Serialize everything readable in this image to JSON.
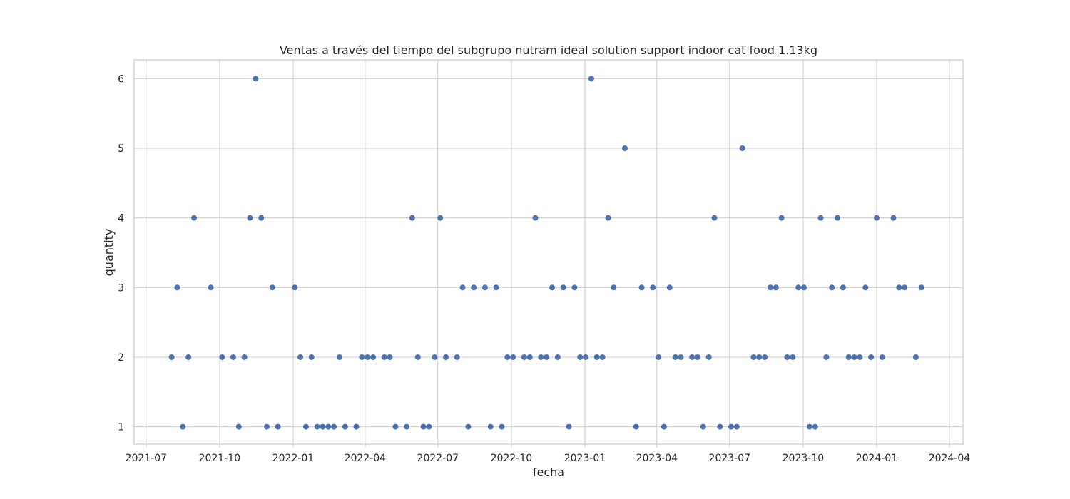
{
  "chart_data": {
    "type": "scatter",
    "title": "Ventas a través del tiempo del subgrupo nutram ideal solution support indoor cat food 1.13kg",
    "xlabel": "fecha",
    "ylabel": "quantity",
    "x_ticks": [
      "2021-07",
      "2021-10",
      "2022-01",
      "2022-04",
      "2022-07",
      "2022-10",
      "2023-01",
      "2023-04",
      "2023-07",
      "2023-10",
      "2024-01",
      "2024-04"
    ],
    "y_ticks": [
      "1",
      "2",
      "3",
      "4",
      "5",
      "6"
    ],
    "xlim": [
      "2021-06-16",
      "2024-04-18"
    ],
    "ylim": [
      0.75,
      6.27
    ],
    "grid": true,
    "point_color": "#4c72b0",
    "points": [
      {
        "x": "2021-08-02",
        "y": 2
      },
      {
        "x": "2021-08-09",
        "y": 3
      },
      {
        "x": "2021-08-16",
        "y": 1
      },
      {
        "x": "2021-08-23",
        "y": 2
      },
      {
        "x": "2021-08-30",
        "y": 4
      },
      {
        "x": "2021-09-20",
        "y": 3
      },
      {
        "x": "2021-10-04",
        "y": 2
      },
      {
        "x": "2021-10-18",
        "y": 2
      },
      {
        "x": "2021-10-25",
        "y": 1
      },
      {
        "x": "2021-11-01",
        "y": 2
      },
      {
        "x": "2021-11-08",
        "y": 4
      },
      {
        "x": "2021-11-15",
        "y": 6
      },
      {
        "x": "2021-11-22",
        "y": 4
      },
      {
        "x": "2021-11-29",
        "y": 1
      },
      {
        "x": "2021-12-06",
        "y": 3
      },
      {
        "x": "2021-12-13",
        "y": 1
      },
      {
        "x": "2022-01-03",
        "y": 3
      },
      {
        "x": "2022-01-10",
        "y": 2
      },
      {
        "x": "2022-01-17",
        "y": 1
      },
      {
        "x": "2022-01-24",
        "y": 2
      },
      {
        "x": "2022-01-31",
        "y": 1
      },
      {
        "x": "2022-02-07",
        "y": 1
      },
      {
        "x": "2022-02-14",
        "y": 1
      },
      {
        "x": "2022-02-21",
        "y": 1
      },
      {
        "x": "2022-02-28",
        "y": 2
      },
      {
        "x": "2022-03-07",
        "y": 1
      },
      {
        "x": "2022-03-21",
        "y": 1
      },
      {
        "x": "2022-03-28",
        "y": 2
      },
      {
        "x": "2022-04-04",
        "y": 2
      },
      {
        "x": "2022-04-11",
        "y": 2
      },
      {
        "x": "2022-04-25",
        "y": 2
      },
      {
        "x": "2022-05-02",
        "y": 2
      },
      {
        "x": "2022-05-09",
        "y": 1
      },
      {
        "x": "2022-05-23",
        "y": 1
      },
      {
        "x": "2022-05-30",
        "y": 4
      },
      {
        "x": "2022-06-06",
        "y": 2
      },
      {
        "x": "2022-06-13",
        "y": 1
      },
      {
        "x": "2022-06-20",
        "y": 1
      },
      {
        "x": "2022-06-27",
        "y": 2
      },
      {
        "x": "2022-07-04",
        "y": 4
      },
      {
        "x": "2022-07-11",
        "y": 2
      },
      {
        "x": "2022-07-25",
        "y": 2
      },
      {
        "x": "2022-08-01",
        "y": 3
      },
      {
        "x": "2022-08-08",
        "y": 1
      },
      {
        "x": "2022-08-15",
        "y": 3
      },
      {
        "x": "2022-08-29",
        "y": 3
      },
      {
        "x": "2022-09-05",
        "y": 1
      },
      {
        "x": "2022-09-12",
        "y": 3
      },
      {
        "x": "2022-09-19",
        "y": 1
      },
      {
        "x": "2022-09-26",
        "y": 2
      },
      {
        "x": "2022-10-03",
        "y": 2
      },
      {
        "x": "2022-10-17",
        "y": 2
      },
      {
        "x": "2022-10-24",
        "y": 2
      },
      {
        "x": "2022-10-31",
        "y": 4
      },
      {
        "x": "2022-11-07",
        "y": 2
      },
      {
        "x": "2022-11-14",
        "y": 2
      },
      {
        "x": "2022-11-21",
        "y": 3
      },
      {
        "x": "2022-11-28",
        "y": 2
      },
      {
        "x": "2022-12-05",
        "y": 3
      },
      {
        "x": "2022-12-12",
        "y": 1
      },
      {
        "x": "2022-12-19",
        "y": 3
      },
      {
        "x": "2022-12-26",
        "y": 2
      },
      {
        "x": "2023-01-02",
        "y": 2
      },
      {
        "x": "2023-01-09",
        "y": 6
      },
      {
        "x": "2023-01-16",
        "y": 2
      },
      {
        "x": "2023-01-23",
        "y": 2
      },
      {
        "x": "2023-01-30",
        "y": 4
      },
      {
        "x": "2023-02-06",
        "y": 3
      },
      {
        "x": "2023-02-20",
        "y": 5
      },
      {
        "x": "2023-03-06",
        "y": 1
      },
      {
        "x": "2023-03-13",
        "y": 3
      },
      {
        "x": "2023-03-27",
        "y": 3
      },
      {
        "x": "2023-04-03",
        "y": 2
      },
      {
        "x": "2023-04-10",
        "y": 1
      },
      {
        "x": "2023-04-17",
        "y": 3
      },
      {
        "x": "2023-04-24",
        "y": 2
      },
      {
        "x": "2023-05-01",
        "y": 2
      },
      {
        "x": "2023-05-15",
        "y": 2
      },
      {
        "x": "2023-05-22",
        "y": 2
      },
      {
        "x": "2023-05-29",
        "y": 1
      },
      {
        "x": "2023-06-05",
        "y": 2
      },
      {
        "x": "2023-06-12",
        "y": 4
      },
      {
        "x": "2023-06-19",
        "y": 1
      },
      {
        "x": "2023-07-03",
        "y": 1
      },
      {
        "x": "2023-07-10",
        "y": 1
      },
      {
        "x": "2023-07-17",
        "y": 5
      },
      {
        "x": "2023-07-31",
        "y": 2
      },
      {
        "x": "2023-08-07",
        "y": 2
      },
      {
        "x": "2023-08-14",
        "y": 2
      },
      {
        "x": "2023-08-21",
        "y": 3
      },
      {
        "x": "2023-08-28",
        "y": 3
      },
      {
        "x": "2023-09-04",
        "y": 4
      },
      {
        "x": "2023-09-11",
        "y": 2
      },
      {
        "x": "2023-09-18",
        "y": 2
      },
      {
        "x": "2023-09-25",
        "y": 3
      },
      {
        "x": "2023-10-02",
        "y": 3
      },
      {
        "x": "2023-10-09",
        "y": 1
      },
      {
        "x": "2023-10-16",
        "y": 1
      },
      {
        "x": "2023-10-23",
        "y": 4
      },
      {
        "x": "2023-10-30",
        "y": 2
      },
      {
        "x": "2023-11-06",
        "y": 3
      },
      {
        "x": "2023-11-13",
        "y": 4
      },
      {
        "x": "2023-11-20",
        "y": 3
      },
      {
        "x": "2023-11-27",
        "y": 2
      },
      {
        "x": "2023-12-04",
        "y": 2
      },
      {
        "x": "2023-12-11",
        "y": 2
      },
      {
        "x": "2023-12-18",
        "y": 3
      },
      {
        "x": "2023-12-25",
        "y": 2
      },
      {
        "x": "2024-01-01",
        "y": 4
      },
      {
        "x": "2024-01-08",
        "y": 2
      },
      {
        "x": "2024-01-22",
        "y": 4
      },
      {
        "x": "2024-01-29",
        "y": 3
      },
      {
        "x": "2024-02-05",
        "y": 3
      },
      {
        "x": "2024-02-19",
        "y": 2
      },
      {
        "x": "2024-02-26",
        "y": 3
      }
    ]
  }
}
